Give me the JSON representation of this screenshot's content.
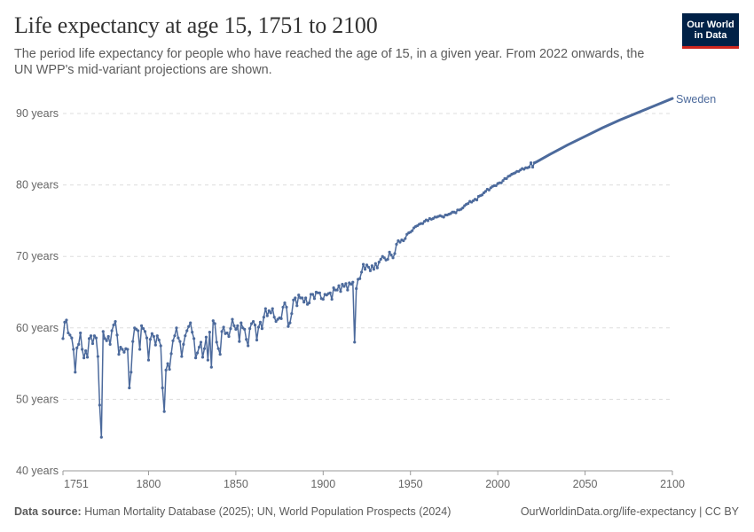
{
  "header": {
    "title": "Life expectancy at age 15, 1751 to 2100",
    "subtitle": "The period life expectancy for people who have reached the age of 15, in a given year. From 2022 onwards, the UN WPP's mid-variant projections are shown.",
    "logo_line1": "Our World",
    "logo_line2": "in Data"
  },
  "footer": {
    "source_label": "Data source:",
    "source_text": " Human Mortality Database (2025); UN, World Population Prospects (2024)",
    "url": "OurWorldinData.org/life-expectancy",
    "license": " | CC BY"
  },
  "colors": {
    "series": "#4c6a9c",
    "grid": "#dddddd",
    "text": "#5b5b5b",
    "title": "#333333"
  },
  "chart_data": {
    "type": "line",
    "title": "Life expectancy at age 15, 1751 to 2100",
    "xlim": [
      1751,
      2100
    ],
    "ylim": [
      40,
      95
    ],
    "x_ticks": [
      1751,
      1800,
      1850,
      1900,
      1950,
      2000,
      2050,
      2100
    ],
    "y_ticks": [
      {
        "value": 40,
        "label": "40 years"
      },
      {
        "value": 50,
        "label": "50 years"
      },
      {
        "value": 60,
        "label": "60 years"
      },
      {
        "value": 70,
        "label": "70 years"
      },
      {
        "value": 80,
        "label": "80 years"
      },
      {
        "value": 90,
        "label": "90 years"
      }
    ],
    "grid": true,
    "series": [
      {
        "name": "Sweden",
        "historical": [
          [
            1751,
            58.5
          ],
          [
            1752,
            60.8
          ],
          [
            1753,
            61.1
          ],
          [
            1754,
            59.3
          ],
          [
            1755,
            59.0
          ],
          [
            1756,
            58.6
          ],
          [
            1757,
            57.0
          ],
          [
            1758,
            53.8
          ],
          [
            1759,
            57.2
          ],
          [
            1760,
            57.7
          ],
          [
            1761,
            59.3
          ],
          [
            1762,
            57.0
          ],
          [
            1763,
            55.8
          ],
          [
            1764,
            56.8
          ],
          [
            1765,
            55.9
          ],
          [
            1766,
            58.5
          ],
          [
            1767,
            58.9
          ],
          [
            1768,
            57.8
          ],
          [
            1769,
            58.9
          ],
          [
            1770,
            58.6
          ],
          [
            1771,
            56.0
          ],
          [
            1772,
            49.2
          ],
          [
            1773,
            44.7
          ],
          [
            1774,
            59.5
          ],
          [
            1775,
            58.5
          ],
          [
            1776,
            58.2
          ],
          [
            1777,
            58.8
          ],
          [
            1778,
            57.7
          ],
          [
            1779,
            59.6
          ],
          [
            1780,
            60.4
          ],
          [
            1781,
            60.9
          ],
          [
            1782,
            59.0
          ],
          [
            1783,
            56.3
          ],
          [
            1784,
            57.3
          ],
          [
            1785,
            57.0
          ],
          [
            1786,
            56.6
          ],
          [
            1787,
            57.1
          ],
          [
            1788,
            57.0
          ],
          [
            1789,
            51.6
          ],
          [
            1790,
            53.8
          ],
          [
            1791,
            58.1
          ],
          [
            1792,
            60.0
          ],
          [
            1793,
            59.8
          ],
          [
            1794,
            59.6
          ],
          [
            1795,
            57.0
          ],
          [
            1796,
            60.3
          ],
          [
            1797,
            59.9
          ],
          [
            1798,
            59.5
          ],
          [
            1799,
            58.6
          ],
          [
            1800,
            55.5
          ],
          [
            1801,
            58.4
          ],
          [
            1802,
            59.2
          ],
          [
            1803,
            58.8
          ],
          [
            1804,
            57.6
          ],
          [
            1805,
            58.9
          ],
          [
            1806,
            58.3
          ],
          [
            1807,
            57.5
          ],
          [
            1808,
            51.6
          ],
          [
            1809,
            48.3
          ],
          [
            1810,
            54.1
          ],
          [
            1811,
            55.0
          ],
          [
            1812,
            54.2
          ],
          [
            1813,
            56.4
          ],
          [
            1814,
            58.2
          ],
          [
            1815,
            58.9
          ],
          [
            1816,
            60.0
          ],
          [
            1817,
            58.6
          ],
          [
            1818,
            58.1
          ],
          [
            1819,
            56.0
          ],
          [
            1820,
            57.7
          ],
          [
            1821,
            58.9
          ],
          [
            1822,
            59.6
          ],
          [
            1823,
            60.2
          ],
          [
            1824,
            60.7
          ],
          [
            1825,
            59.4
          ],
          [
            1826,
            58.5
          ],
          [
            1827,
            55.8
          ],
          [
            1828,
            56.5
          ],
          [
            1829,
            57.3
          ],
          [
            1830,
            58.0
          ],
          [
            1831,
            55.9
          ],
          [
            1832,
            57.1
          ],
          [
            1833,
            58.7
          ],
          [
            1834,
            55.5
          ],
          [
            1835,
            59.4
          ],
          [
            1836,
            54.5
          ],
          [
            1837,
            61.0
          ],
          [
            1838,
            60.6
          ],
          [
            1839,
            58.0
          ],
          [
            1840,
            57.1
          ],
          [
            1841,
            56.3
          ],
          [
            1842,
            59.5
          ],
          [
            1843,
            60.1
          ],
          [
            1844,
            59.2
          ],
          [
            1845,
            59.3
          ],
          [
            1846,
            58.8
          ],
          [
            1847,
            59.9
          ],
          [
            1848,
            61.2
          ],
          [
            1849,
            60.3
          ],
          [
            1850,
            59.8
          ],
          [
            1851,
            60.3
          ],
          [
            1852,
            58.1
          ],
          [
            1853,
            60.7
          ],
          [
            1854,
            60.0
          ],
          [
            1855,
            59.8
          ],
          [
            1856,
            58.4
          ],
          [
            1857,
            57.5
          ],
          [
            1858,
            59.9
          ],
          [
            1859,
            60.6
          ],
          [
            1860,
            60.9
          ],
          [
            1861,
            60.4
          ],
          [
            1862,
            58.3
          ],
          [
            1863,
            60.1
          ],
          [
            1864,
            60.8
          ],
          [
            1865,
            59.9
          ],
          [
            1866,
            61.5
          ],
          [
            1867,
            62.7
          ],
          [
            1868,
            61.7
          ],
          [
            1869,
            62.4
          ],
          [
            1870,
            62.1
          ],
          [
            1871,
            62.7
          ],
          [
            1872,
            61.5
          ],
          [
            1873,
            60.9
          ],
          [
            1874,
            61.2
          ],
          [
            1875,
            61.4
          ],
          [
            1876,
            61.3
          ],
          [
            1877,
            62.9
          ],
          [
            1878,
            63.5
          ],
          [
            1879,
            62.9
          ],
          [
            1880,
            60.2
          ],
          [
            1881,
            60.7
          ],
          [
            1882,
            62.0
          ],
          [
            1883,
            63.9
          ],
          [
            1884,
            64.2
          ],
          [
            1885,
            63.1
          ],
          [
            1886,
            64.6
          ],
          [
            1887,
            64.2
          ],
          [
            1888,
            64.2
          ],
          [
            1889,
            63.6
          ],
          [
            1890,
            64.2
          ],
          [
            1891,
            63.3
          ],
          [
            1892,
            63.5
          ],
          [
            1893,
            64.7
          ],
          [
            1894,
            64.7
          ],
          [
            1895,
            64.1
          ],
          [
            1896,
            65.0
          ],
          [
            1897,
            64.9
          ],
          [
            1898,
            64.9
          ],
          [
            1899,
            64.1
          ],
          [
            1900,
            64.0
          ],
          [
            1901,
            64.7
          ],
          [
            1902,
            64.6
          ],
          [
            1903,
            64.8
          ],
          [
            1904,
            64.9
          ],
          [
            1905,
            64.0
          ],
          [
            1906,
            65.6
          ],
          [
            1907,
            65.3
          ],
          [
            1908,
            65.3
          ],
          [
            1909,
            65.9
          ],
          [
            1910,
            65.1
          ],
          [
            1911,
            66.1
          ],
          [
            1912,
            65.8
          ],
          [
            1913,
            66.2
          ],
          [
            1914,
            65.3
          ],
          [
            1915,
            66.3
          ],
          [
            1916,
            66.1
          ],
          [
            1917,
            66.4
          ],
          [
            1918,
            58.0
          ],
          [
            1919,
            65.5
          ],
          [
            1920,
            66.8
          ],
          [
            1921,
            66.9
          ],
          [
            1922,
            67.8
          ],
          [
            1923,
            68.9
          ],
          [
            1924,
            68.2
          ],
          [
            1925,
            68.8
          ],
          [
            1926,
            68.5
          ],
          [
            1927,
            68.0
          ],
          [
            1928,
            68.7
          ],
          [
            1929,
            68.2
          ],
          [
            1930,
            69.0
          ],
          [
            1931,
            68.4
          ],
          [
            1932,
            69.2
          ],
          [
            1933,
            69.6
          ],
          [
            1934,
            70.0
          ],
          [
            1935,
            69.8
          ],
          [
            1936,
            69.5
          ],
          [
            1937,
            69.6
          ],
          [
            1938,
            70.6
          ],
          [
            1939,
            70.2
          ],
          [
            1940,
            69.8
          ],
          [
            1941,
            70.4
          ],
          [
            1942,
            71.7
          ],
          [
            1943,
            72.2
          ],
          [
            1944,
            72.0
          ],
          [
            1945,
            72.3
          ],
          [
            1946,
            72.2
          ],
          [
            1947,
            72.5
          ],
          [
            1948,
            73.1
          ],
          [
            1949,
            73.3
          ],
          [
            1950,
            73.4
          ],
          [
            1951,
            73.6
          ],
          [
            1952,
            74.0
          ],
          [
            1953,
            74.2
          ],
          [
            1954,
            74.3
          ],
          [
            1955,
            74.5
          ],
          [
            1956,
            74.6
          ],
          [
            1957,
            74.6
          ],
          [
            1958,
            74.9
          ],
          [
            1959,
            75.1
          ],
          [
            1960,
            75.0
          ],
          [
            1961,
            75.3
          ],
          [
            1962,
            75.2
          ],
          [
            1963,
            75.3
          ],
          [
            1964,
            75.5
          ],
          [
            1965,
            75.5
          ],
          [
            1966,
            75.6
          ],
          [
            1967,
            75.7
          ],
          [
            1968,
            75.6
          ],
          [
            1969,
            75.5
          ],
          [
            1970,
            75.8
          ],
          [
            1971,
            75.8
          ],
          [
            1972,
            75.9
          ],
          [
            1973,
            76.0
          ],
          [
            1974,
            76.2
          ],
          [
            1975,
            76.2
          ],
          [
            1976,
            76.1
          ],
          [
            1977,
            76.5
          ],
          [
            1978,
            76.5
          ],
          [
            1979,
            76.6
          ],
          [
            1980,
            76.8
          ],
          [
            1981,
            77.1
          ],
          [
            1982,
            77.3
          ],
          [
            1983,
            77.4
          ],
          [
            1984,
            77.7
          ],
          [
            1985,
            77.6
          ],
          [
            1986,
            77.8
          ],
          [
            1987,
            78.0
          ],
          [
            1988,
            77.9
          ],
          [
            1989,
            78.4
          ],
          [
            1990,
            78.5
          ],
          [
            1991,
            78.6
          ],
          [
            1992,
            78.9
          ],
          [
            1993,
            79.1
          ],
          [
            1994,
            79.4
          ],
          [
            1995,
            79.3
          ],
          [
            1996,
            79.6
          ],
          [
            1997,
            79.8
          ],
          [
            1998,
            79.9
          ],
          [
            1999,
            79.9
          ],
          [
            2000,
            80.2
          ],
          [
            2001,
            80.3
          ],
          [
            2002,
            80.3
          ],
          [
            2003,
            80.6
          ],
          [
            2004,
            80.9
          ],
          [
            2005,
            80.9
          ],
          [
            2006,
            81.2
          ],
          [
            2007,
            81.3
          ],
          [
            2008,
            81.5
          ],
          [
            2009,
            81.6
          ],
          [
            2010,
            81.7
          ],
          [
            2011,
            81.9
          ],
          [
            2012,
            81.9
          ],
          [
            2013,
            82.1
          ],
          [
            2014,
            82.3
          ],
          [
            2015,
            82.2
          ],
          [
            2016,
            82.4
          ],
          [
            2017,
            82.4
          ],
          [
            2018,
            82.5
          ],
          [
            2019,
            83.1
          ],
          [
            2020,
            82.5
          ],
          [
            2021,
            83.1
          ]
        ],
        "projected": [
          [
            2022,
            83.2
          ],
          [
            2030,
            84.3
          ],
          [
            2040,
            85.6
          ],
          [
            2050,
            86.8
          ],
          [
            2060,
            88.0
          ],
          [
            2070,
            89.1
          ],
          [
            2080,
            90.1
          ],
          [
            2090,
            91.1
          ],
          [
            2100,
            92.1
          ]
        ]
      }
    ]
  }
}
